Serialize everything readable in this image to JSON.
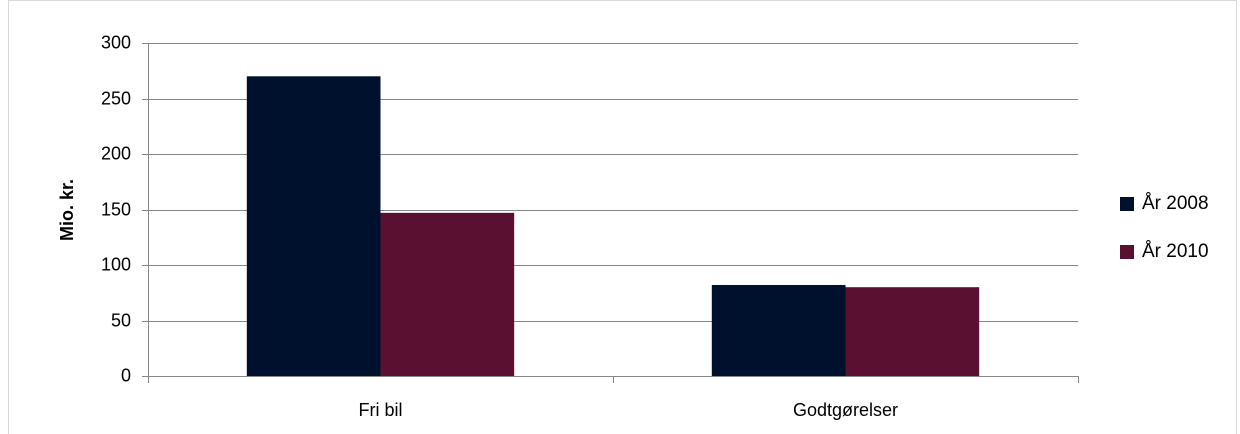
{
  "chart_data": {
    "type": "bar",
    "title": "",
    "xlabel": "",
    "ylabel": "Mio. kr.",
    "categories": [
      "Fri bil",
      "Godtgørelser"
    ],
    "series": [
      {
        "name": "År 2008",
        "values": [
          270,
          82
        ],
        "color": "#00112e"
      },
      {
        "name": "År 2010",
        "values": [
          147,
          80
        ],
        "color": "#5a1030"
      }
    ],
    "ylim": [
      0,
      300
    ],
    "yticks": [
      0,
      50,
      100,
      150,
      200,
      250,
      300
    ],
    "grid": true,
    "legend": "right"
  },
  "colors": {
    "gridline": "#868686",
    "frame_border": "#d9d9d9"
  }
}
